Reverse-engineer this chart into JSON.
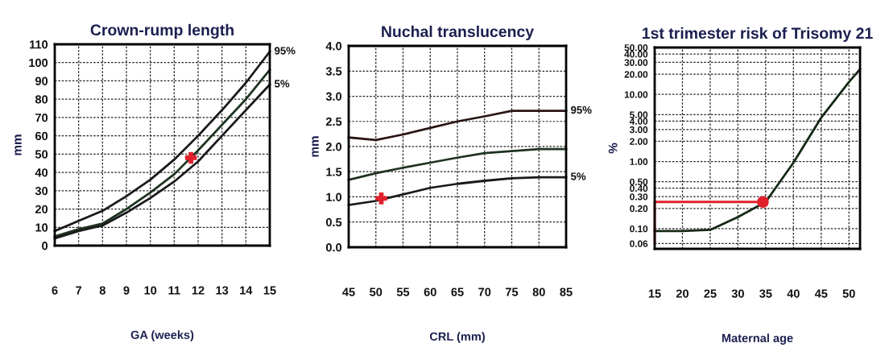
{
  "chart_data": [
    {
      "type": "line",
      "title": "Crown-rump length",
      "xlabel": "GA (weeks)",
      "ylabel": "mm",
      "x": [
        6,
        7,
        8,
        9,
        10,
        11,
        12,
        13,
        14,
        15
      ],
      "xlim": [
        6,
        15
      ],
      "xticks": [
        6,
        7,
        8,
        9,
        10,
        11,
        12,
        13,
        14,
        15
      ],
      "ylim": [
        0,
        110
      ],
      "yticks": [
        0,
        10,
        20,
        30,
        40,
        50,
        60,
        70,
        80,
        90,
        100,
        110
      ],
      "grid": true,
      "series": [
        {
          "name": "95%",
          "color": "#1a1a1a",
          "values": [
            8,
            13.5,
            19,
            27,
            36,
            47,
            60,
            74,
            89,
            106
          ]
        },
        {
          "color": "#1e3320",
          "values": [
            5,
            9,
            12,
            20,
            29,
            39,
            52,
            66,
            80,
            96
          ]
        },
        {
          "name": "5%",
          "color": "#1a1a1a",
          "values": [
            4,
            8,
            11,
            18,
            26,
            35,
            46,
            60,
            74,
            88
          ]
        },
        {
          "type": "scatter",
          "marker": "cross",
          "color": "#e0202a",
          "x": [
            11.7
          ],
          "values": [
            48
          ]
        }
      ]
    },
    {
      "type": "line",
      "title": "Nuchal translucency",
      "xlabel": "CRL (mm)",
      "ylabel": "mm",
      "x": [
        45,
        50,
        55,
        60,
        65,
        70,
        75,
        80,
        85
      ],
      "xlim": [
        45,
        85
      ],
      "xticks": [
        45,
        50,
        55,
        60,
        65,
        70,
        75,
        80,
        85
      ],
      "ylim": [
        0,
        4
      ],
      "yticks": [
        {
          "value": 0,
          "label": "0.0"
        },
        0.5,
        {
          "value": 1,
          "label": "1.0"
        },
        1.5,
        {
          "value": 2,
          "label": "2.0"
        },
        2.5,
        {
          "value": 3,
          "label": "3.0"
        },
        3.5,
        {
          "value": 4,
          "label": "4.0"
        }
      ],
      "grid": true,
      "series": [
        {
          "name": "95%",
          "color": "#2a1414",
          "values": [
            2.18,
            2.13,
            2.24,
            2.37,
            2.5,
            2.6,
            2.71,
            2.71,
            2.71
          ]
        },
        {
          "color": "#1e3320",
          "values": [
            1.34,
            1.47,
            1.58,
            1.68,
            1.78,
            1.87,
            1.91,
            1.95,
            1.95
          ]
        },
        {
          "name": "5%",
          "color": "#1a1a1a",
          "values": [
            0.84,
            0.92,
            1.05,
            1.18,
            1.26,
            1.32,
            1.37,
            1.39,
            1.39
          ]
        },
        {
          "type": "scatter",
          "marker": "cross",
          "color": "#e0202a",
          "x": [
            51
          ],
          "values": [
            0.97
          ]
        }
      ]
    },
    {
      "type": "line",
      "title": "1st trimester risk of Trisomy 21",
      "xlabel": "Maternal age",
      "ylabel": "%",
      "log": "y",
      "x": [
        15,
        20,
        25,
        30,
        35,
        40,
        45,
        50,
        52
      ],
      "xlim": [
        15,
        52
      ],
      "xticks": [
        15,
        20,
        25,
        30,
        35,
        40,
        45,
        50
      ],
      "ylim": [
        0.05,
        50
      ],
      "yticks": [
        {
          "value": 0.06,
          "label": "0.06"
        },
        {
          "value": 0.1,
          "label": "0.10"
        },
        {
          "value": 0.2,
          "label": "0.20"
        },
        {
          "value": 0.3,
          "label": "0.30"
        },
        {
          "value": 0.4,
          "label": "0.40"
        },
        {
          "value": 0.5,
          "label": "0.50"
        },
        {
          "value": 1,
          "label": "1.00"
        },
        {
          "value": 2,
          "label": "2.00"
        },
        {
          "value": 3,
          "label": "3.00"
        },
        {
          "value": 4,
          "label": "4.00"
        },
        {
          "value": 5,
          "label": "5.00"
        },
        {
          "value": 10,
          "label": "10.00"
        },
        {
          "value": 20,
          "label": "20.00"
        },
        {
          "value": 30,
          "label": "30.00"
        },
        {
          "value": 40,
          "label": "40.00"
        },
        {
          "value": 50,
          "label": "50.00"
        }
      ],
      "grid": true,
      "series": [
        {
          "color": "#142814",
          "values": [
            0.092,
            0.092,
            0.096,
            0.149,
            0.25,
            0.96,
            4.5,
            15.3,
            23.8
          ]
        },
        {
          "type": "line",
          "color": "#e0202a",
          "x": [
            34.5,
            15,
            15
          ],
          "values": [
            0.25,
            0.25,
            0.06
          ]
        },
        {
          "type": "scatter",
          "marker": "circle",
          "color": "#e0202a",
          "x": [
            34.5
          ],
          "values": [
            0.25
          ]
        }
      ]
    }
  ]
}
